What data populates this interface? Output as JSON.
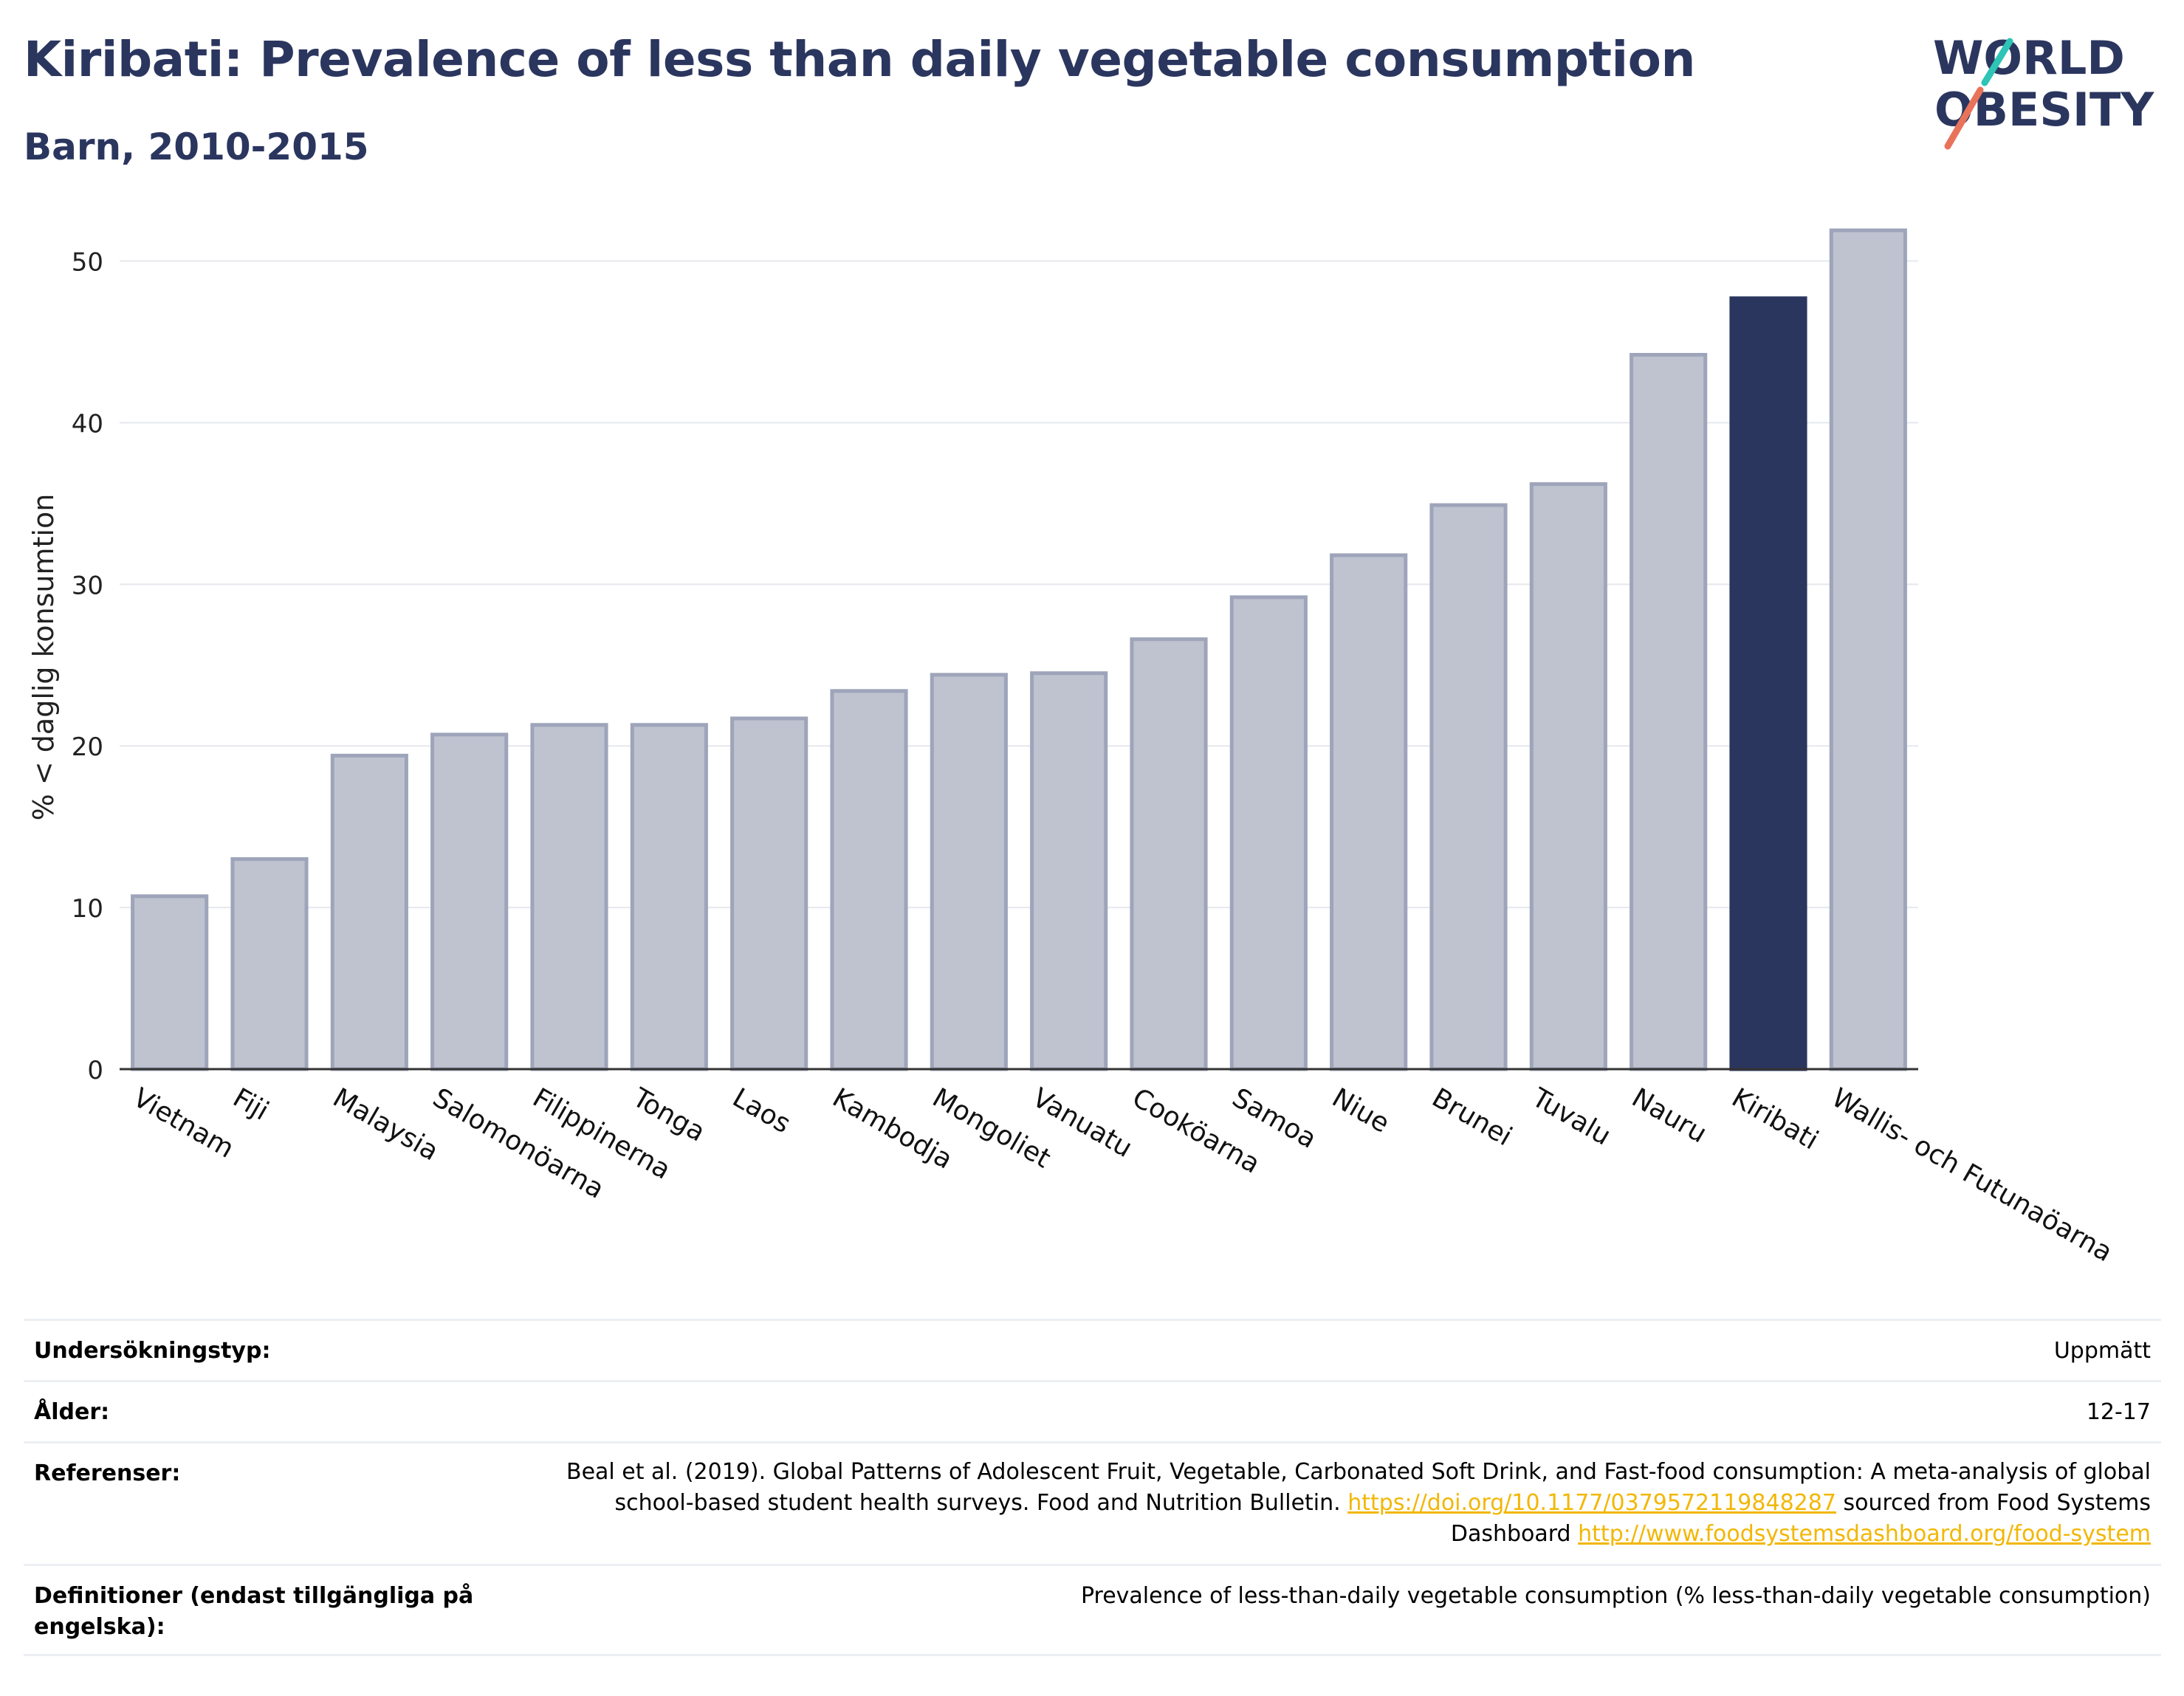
{
  "header": {
    "title": "Kiribati: Prevalence of less than daily vegetable consumption",
    "subtitle": "Barn, 2010-2015"
  },
  "logo": {
    "line1": "WORLD",
    "line2": "OBESITY",
    "accent_teal": "#2ec4b6",
    "accent_coral": "#e8735a"
  },
  "colors": {
    "bar": "#bfc3d0",
    "bar_border": "#9ea4b9",
    "highlight": "#2b365f",
    "text": "#2b365f",
    "link": "#f2b705",
    "grid": "#e6e8ee"
  },
  "chart_data": {
    "type": "bar",
    "ylabel": "% < daglig konsumtion",
    "xlabel": "",
    "ylim": [
      0,
      54
    ],
    "yticks": [
      0,
      10,
      20,
      30,
      40,
      50
    ],
    "grid": true,
    "highlight": "Kiribati",
    "categories": [
      "Vietnam",
      "Fiji",
      "Malaysia",
      "Salomonöarna",
      "Filippinerna",
      "Tonga",
      "Laos",
      "Kambodja",
      "Mongoliet",
      "Vanuatu",
      "Cooköarna",
      "Samoa",
      "Niue",
      "Brunei",
      "Tuvalu",
      "Nauru",
      "Kiribati",
      "Wallis- och Futunaöarna"
    ],
    "values": [
      10.7,
      13.0,
      19.4,
      20.7,
      21.3,
      21.3,
      21.7,
      23.4,
      24.4,
      24.5,
      26.6,
      29.2,
      31.8,
      34.9,
      36.2,
      44.2,
      47.7,
      51.9
    ]
  },
  "info": {
    "rows": [
      {
        "label": "Undersökningstyp:",
        "value": "Uppmätt"
      },
      {
        "label": "Ålder:",
        "value": "12-17"
      },
      {
        "label": "Referenser:",
        "value_pre": "Beal et al. (2019). Global Patterns of Adolescent Fruit, Vegetable, Carbonated Soft Drink, and Fast-food consumption: A meta-analysis of global school-based student health surveys. Food and Nutrition Bulletin.",
        "link1": "https://doi.org/10.1177/0379572119848287",
        "value_mid": "sourced from Food Systems Dashboard",
        "link2": "http://www.foodsystemsdashboard.org/food-system"
      },
      {
        "label": "Definitioner (endast tillgängliga på engelska):",
        "value": "Prevalence of less-than-daily vegetable consumption (% less-than-daily vegetable consumption)"
      }
    ]
  }
}
